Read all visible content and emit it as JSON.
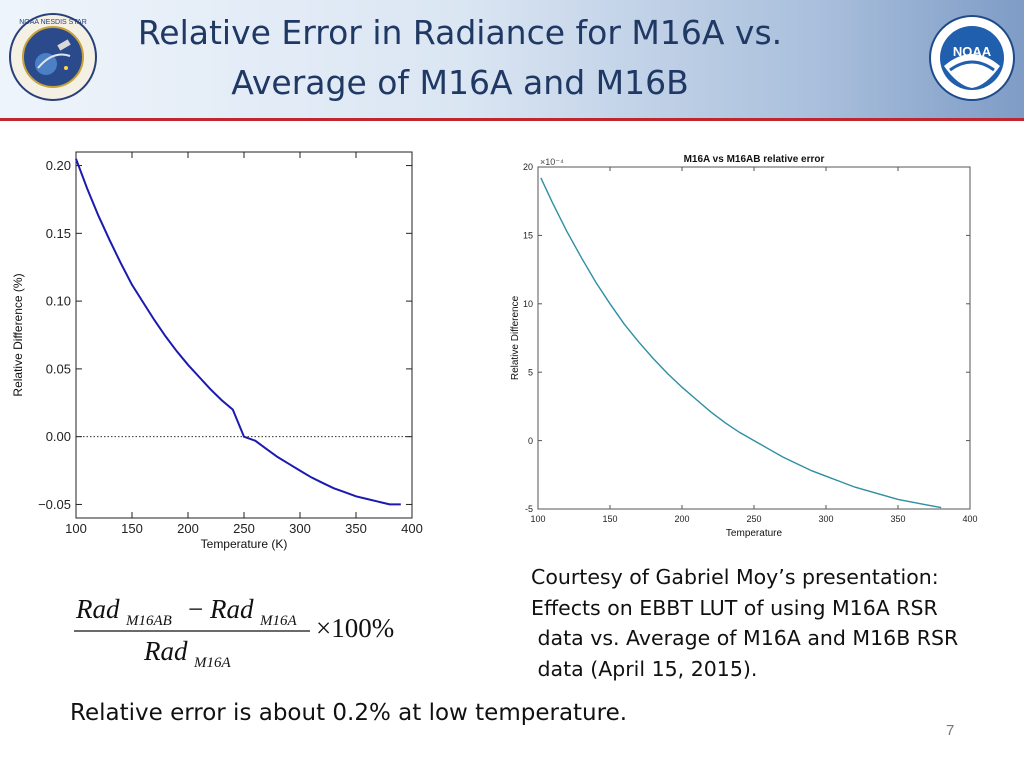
{
  "header": {
    "title_line1": "Relative Error in Radiance for M16A vs.",
    "title_line2": "Average of M16A and M16B",
    "left_logo_text": "NOAA NESDIS STAR",
    "right_logo_text": "NOAA"
  },
  "chart_data": [
    {
      "type": "line",
      "title": "",
      "xlabel": "Temperature (K)",
      "ylabel": "Relative Difference (%)",
      "xlim": [
        100,
        400
      ],
      "ylim": [
        -0.06,
        0.21
      ],
      "x_ticks": [
        "100",
        "150",
        "200",
        "250",
        "300",
        "350",
        "400"
      ],
      "y_ticks": [
        "0.20",
        "0.15",
        "0.10",
        "0.05",
        "0.00",
        "−0.05"
      ],
      "y_tick_values": [
        0.2,
        0.15,
        0.1,
        0.05,
        0.0,
        -0.05
      ],
      "zero_line": "dotted",
      "color": "#1a1ab0",
      "series": [
        {
          "x": [
            100,
            110,
            120,
            130,
            140,
            150,
            160,
            170,
            180,
            190,
            200,
            210,
            220,
            230,
            240,
            250,
            260,
            270,
            280,
            290,
            300,
            310,
            320,
            330,
            340,
            350,
            360,
            370,
            380,
            390
          ],
          "values": [
            0.205,
            0.183,
            0.163,
            0.145,
            0.128,
            0.112,
            0.099,
            0.086,
            0.074,
            0.063,
            0.053,
            0.044,
            0.035,
            0.027,
            0.02,
            0.0,
            -0.003,
            -0.009,
            -0.015,
            -0.02,
            -0.025,
            -0.03,
            -0.034,
            -0.038,
            -0.041,
            -0.044,
            -0.046,
            -0.048,
            -0.05,
            -0.05
          ]
        }
      ]
    },
    {
      "type": "line",
      "title": "M16A vs M16AB relative error",
      "xlabel": "Temperature",
      "ylabel": "Relative Difference",
      "exponent_label": "×10⁻⁴",
      "xlim": [
        100,
        400
      ],
      "ylim": [
        -5,
        20
      ],
      "x_ticks": [
        "100",
        "150",
        "200",
        "250",
        "300",
        "350",
        "400"
      ],
      "y_ticks": [
        "20",
        "15",
        "10",
        "5",
        "0",
        "-5"
      ],
      "y_tick_values": [
        20,
        15,
        10,
        5,
        0,
        -5
      ],
      "color": "#2e8fa3",
      "series": [
        {
          "x": [
            102,
            110,
            120,
            130,
            140,
            150,
            160,
            170,
            180,
            190,
            200,
            210,
            220,
            230,
            240,
            250,
            260,
            270,
            280,
            290,
            300,
            310,
            320,
            330,
            340,
            350,
            360,
            370,
            380
          ],
          "values": [
            19.2,
            17.4,
            15.3,
            13.4,
            11.6,
            10.0,
            8.5,
            7.2,
            6.0,
            4.9,
            3.9,
            3.0,
            2.1,
            1.3,
            0.6,
            0.0,
            -0.6,
            -1.2,
            -1.7,
            -2.2,
            -2.6,
            -3.0,
            -3.4,
            -3.7,
            -4.0,
            -4.3,
            -4.5,
            -4.7,
            -4.9
          ]
        }
      ]
    }
  ],
  "formula": {
    "num_rad1": "Rad",
    "num_sub1": "M16AB",
    "minus": "−",
    "num_rad2": "Rad",
    "num_sub2": "M16A",
    "times": "×100%",
    "den_rad": "Rad",
    "den_sub": "M16A"
  },
  "courtesy": {
    "line1": "Courtesy of Gabriel Moy’s presentation:",
    "line2": "Effects on EBBT LUT of using M16A RSR",
    "line3": " data vs. Average of M16A and M16B RSR",
    "line4": " data (April 15, 2015)."
  },
  "bottom_text": "Relative error is about 0.2% at low temperature.",
  "page_number": "7"
}
